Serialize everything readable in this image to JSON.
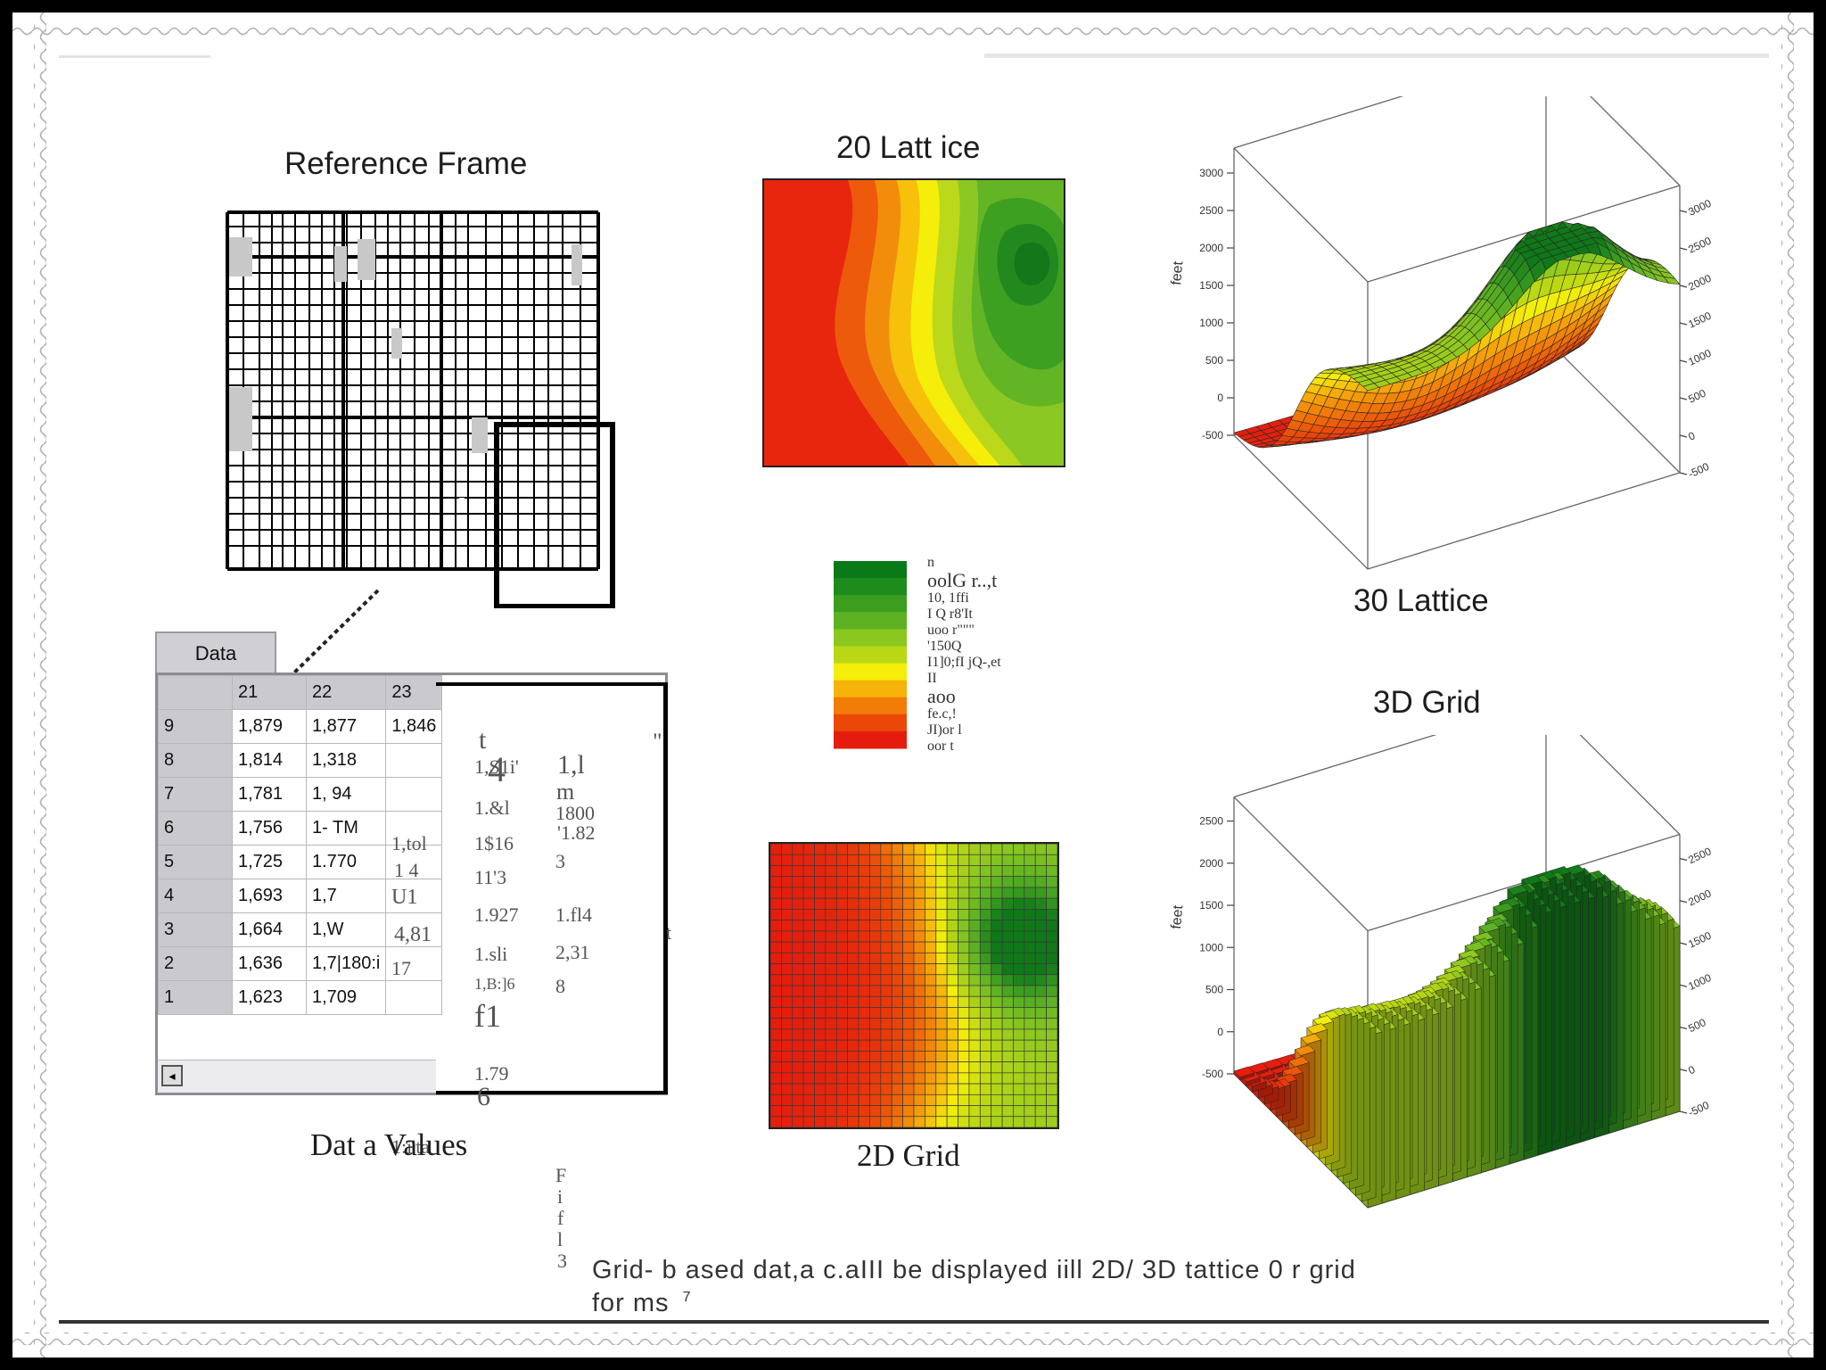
{
  "labels": {
    "reference_frame": "Reference Frame",
    "lattice_2d": "20 Latt ice",
    "lattice_3d": "30 Lattice",
    "grid_3d": "3D Grid",
    "grid_2d": "2D Grid",
    "data_values": "Dat a Values"
  },
  "caption": {
    "line1": "Grid- b ased dat,a c.aIII be displayed iill 2D/ 3D tattice 0 r grid",
    "line2": "for ms",
    "superscript": "7"
  },
  "data_table": {
    "tab_label": "Data",
    "columns": [
      "21",
      "22",
      "23"
    ],
    "rows": [
      {
        "row": "9",
        "c21": "1,879",
        "c22": "1,877",
        "c23": "1,846"
      },
      {
        "row": "8",
        "c21": "1,814",
        "c22": "1,318",
        "c23": ""
      },
      {
        "row": "7",
        "c21": "1,781",
        "c22": "1, 94",
        "c23": ""
      },
      {
        "row": "6",
        "c21": "1,756",
        "c22": "1- TM",
        "c23": ""
      },
      {
        "row": "5",
        "c21": "1,725",
        "c22": "1.770",
        "c23": ""
      },
      {
        "row": "4",
        "c21": "1,693",
        "c22": "1,7",
        "c23": ""
      },
      {
        "row": "3",
        "c21": "1,664",
        "c22": "1,W",
        "c23": ""
      },
      {
        "row": "2",
        "c21": "1,636",
        "c22": "1,7|180:i",
        "c23": ""
      },
      {
        "row": "1",
        "c21": "1,623",
        "c22": "1,709",
        "c23": ""
      }
    ],
    "ghost_values": [
      "t",
      "\"",
      "1,S1i'",
      "4",
      "1,l",
      "m",
      "1.&l",
      "1800",
      "'1.82",
      "1,tol",
      "1$16",
      "3",
      "1 4",
      "11'3",
      "U1",
      "1.927",
      "1.fl4",
      "4,81",
      "1.sli",
      "2,31",
      "t",
      "17",
      "1,B:]6",
      "8",
      "f1",
      "1,784",
      "1.79",
      "6",
      "1:i'ta",
      "F",
      "i",
      "f",
      "l",
      "3"
    ]
  },
  "legend": {
    "colors": [
      "#0a7a18",
      "#1e8c1c",
      "#3c9e1e",
      "#5db223",
      "#8ac71f",
      "#b9d714",
      "#f4ee0a",
      "#f6b40a",
      "#f17c08",
      "#eb4808",
      "#e51c0d"
    ],
    "text_lines": [
      "n",
      "oolG r..,t",
      "10, 1ffi",
      "I Q r8'It",
      "uoo r\"\"\"",
      "'150Q",
      "I1]0;fI jQ-,et",
      "II",
      "aoo",
      "fe.c,!",
      "JI)or l",
      "oor t"
    ]
  },
  "axes_3d_lattice": {
    "left_ticks": [
      "3000",
      "2500",
      "2000",
      "1500",
      "1000",
      "500",
      "0",
      "-500"
    ],
    "right_ticks": [
      "3000",
      "2500",
      "2000",
      "1500",
      "1000",
      "500",
      "0",
      "-500"
    ],
    "axis_label": "feet"
  },
  "axes_3d_grid": {
    "left_ticks": [
      "2500",
      "2000",
      "1500",
      "1000",
      "500",
      "0",
      "-500"
    ],
    "right_ticks": [
      "2500",
      "2000",
      "1500",
      "1000",
      "500",
      "0",
      "-500"
    ],
    "axis_label": "feet"
  }
}
